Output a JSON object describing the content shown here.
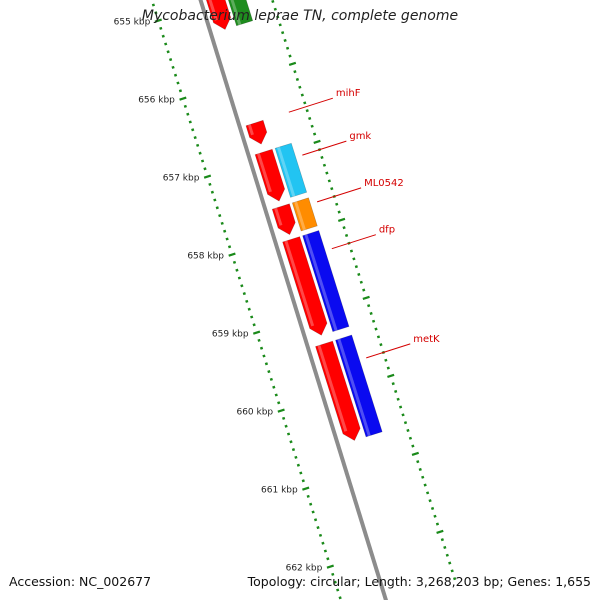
{
  "title": "Mycobacterium leprae TN, complete genome",
  "footer": {
    "accession": "Accession: NC_002677",
    "summary": "Topology: circular; Length: 3,268,203 bp; Genes: 1,655"
  },
  "axis": {
    "unit": "kbp",
    "ticks": [
      {
        "label": "655 kbp",
        "value": 655
      },
      {
        "label": "656 kbp",
        "value": 656
      },
      {
        "label": "657 kbp",
        "value": 657
      },
      {
        "label": "658 kbp",
        "value": 658
      },
      {
        "label": "659 kbp",
        "value": 659
      },
      {
        "label": "660 kbp",
        "value": 660
      },
      {
        "label": "661 kbp",
        "value": 661
      },
      {
        "label": "662 kbp",
        "value": 662
      }
    ]
  },
  "colors": {
    "backbone": "#8c8c8c",
    "tick": "#1a8a1a",
    "gene_red": "#ff0000",
    "gene_green": "#1e8c1e",
    "gene_cyan": "#22c4f2",
    "gene_orange": "#ff8c00",
    "gene_blue": "#0a0af0",
    "label": "#d40000"
  },
  "features": [
    {
      "name": "",
      "track": "inner",
      "start": 654.86,
      "end": 655.35,
      "color": "gene_red",
      "arrow": true
    },
    {
      "name": "",
      "track": "outer",
      "start": 654.86,
      "end": 655.35,
      "color": "gene_green",
      "arrow": false
    },
    {
      "name": "",
      "track": "inner",
      "start": 656.55,
      "end": 656.82,
      "color": "gene_red",
      "arrow": true
    },
    {
      "name": "",
      "track": "inner",
      "start": 656.92,
      "end": 657.55,
      "color": "gene_red",
      "arrow": true
    },
    {
      "name": "",
      "track": "outer",
      "start": 656.92,
      "end": 657.55,
      "color": "gene_cyan",
      "arrow": false
    },
    {
      "name": "",
      "track": "inner",
      "start": 657.62,
      "end": 657.98,
      "color": "gene_red",
      "arrow": true
    },
    {
      "name": "",
      "track": "outer",
      "start": 657.62,
      "end": 657.98,
      "color": "gene_orange",
      "arrow": false
    },
    {
      "name": "",
      "track": "inner",
      "start": 658.04,
      "end": 659.27,
      "color": "gene_red",
      "arrow": true
    },
    {
      "name": "",
      "track": "outer",
      "start": 658.04,
      "end": 659.27,
      "color": "gene_blue",
      "arrow": false
    },
    {
      "name": "",
      "track": "inner",
      "start": 659.38,
      "end": 660.62,
      "color": "gene_red",
      "arrow": true
    },
    {
      "name": "",
      "track": "outer",
      "start": 659.38,
      "end": 660.62,
      "color": "gene_blue",
      "arrow": false
    }
  ],
  "gene_labels": [
    {
      "text": "mihF",
      "value": 656.55
    },
    {
      "text": "gmk",
      "value": 657.1
    },
    {
      "text": "ML0542",
      "value": 657.7
    },
    {
      "text": "dfp",
      "value": 658.3
    },
    {
      "text": "metK",
      "value": 659.7
    }
  ]
}
